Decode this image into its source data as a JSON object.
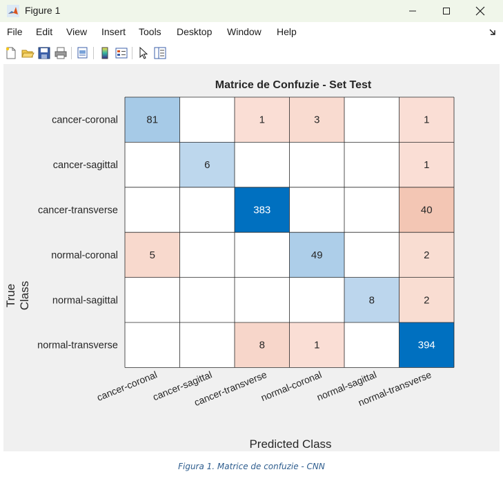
{
  "window": {
    "title": "Figure 1",
    "controls": {
      "minimize": "–",
      "maximize": "☐",
      "close": "✕"
    }
  },
  "menu": {
    "items": [
      "File",
      "Edit",
      "View",
      "Insert",
      "Tools",
      "Desktop",
      "Window",
      "Help"
    ],
    "corner_icon": "dock-arrow-icon"
  },
  "toolbar": {
    "tools": [
      "new-figure-icon",
      "open-file-icon",
      "save-icon",
      "print-icon",
      "print-preview-icon",
      "colorbar-icon",
      "legend-icon",
      "pointer-icon",
      "property-inspector-icon"
    ]
  },
  "colors": {
    "diag_dark": "#0070c0",
    "diag_light": "#c6dbef",
    "offdiag_light": "#fbe3db",
    "offdiag_mid": "#f3c6b4",
    "grid": "#262626",
    "figure_bg": "#f0f0f0",
    "caption": "#2e5d8e"
  },
  "chart_data": {
    "type": "heatmap",
    "title": "Matrice de Confuzie - Set Test",
    "xlabel": "Predicted Class",
    "ylabel": "True Class",
    "classes": [
      "cancer-coronal",
      "cancer-sagittal",
      "cancer-transverse",
      "normal-coronal",
      "normal-sagittal",
      "normal-transverse"
    ],
    "matrix": [
      [
        81,
        0,
        1,
        3,
        0,
        1
      ],
      [
        0,
        6,
        0,
        0,
        0,
        1
      ],
      [
        0,
        0,
        383,
        0,
        0,
        40
      ],
      [
        5,
        0,
        0,
        49,
        0,
        2
      ],
      [
        0,
        0,
        0,
        0,
        8,
        2
      ],
      [
        0,
        0,
        8,
        1,
        0,
        394
      ]
    ]
  },
  "caption": "Figura 1. Matrice de confuzie - CNN"
}
